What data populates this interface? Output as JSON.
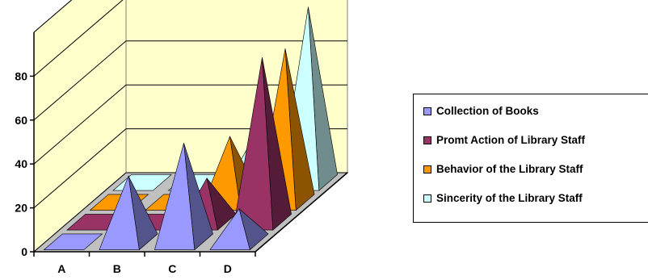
{
  "chart_data": {
    "type": "bar",
    "style": "3d-pyramid",
    "title": "",
    "xlabel": "",
    "ylabel": "",
    "categories": [
      "A",
      "B",
      "C",
      "D"
    ],
    "series": [
      {
        "name": "Collection of Books",
        "values": [
          0,
          30,
          45,
          15
        ],
        "color": "#9999FF"
      },
      {
        "name": "Promt Action of Library Staff",
        "values": [
          0,
          0,
          20,
          75
        ],
        "color": "#993366"
      },
      {
        "name": "Behavior of the Library Staff",
        "values": [
          0,
          0,
          30,
          70
        ],
        "color": "#FF9900"
      },
      {
        "name": "Sincerity of the Library Staff",
        "values": [
          0,
          0,
          20,
          80
        ],
        "color": "#CCFFFF"
      }
    ],
    "ylim": [
      0,
      100
    ],
    "yticks": [
      0,
      20,
      40,
      60,
      80
    ],
    "grid": true,
    "legend": "right",
    "wall_color": "#FFFFCC",
    "floor_color": "#C0C0C0"
  }
}
